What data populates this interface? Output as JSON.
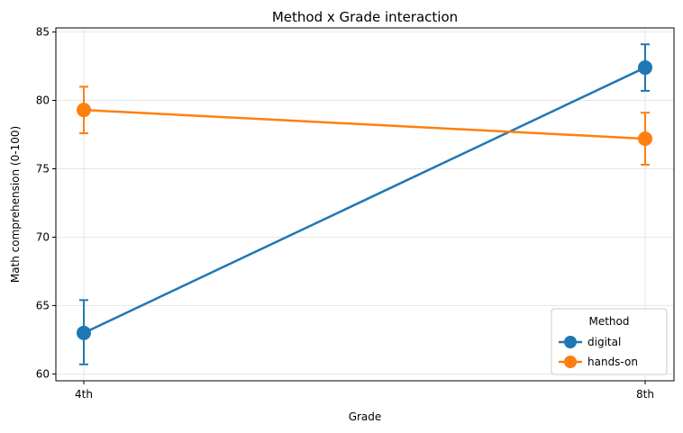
{
  "chart_data": {
    "type": "line",
    "title": "Method x Grade interaction",
    "xlabel": "Grade",
    "ylabel": "Math comprehension (0-100)",
    "categories": [
      "4th",
      "8th"
    ],
    "ylim": [
      59.5,
      85.3
    ],
    "yticks": [
      60,
      65,
      70,
      75,
      80,
      85
    ],
    "grid": true,
    "legend": {
      "title": "Method",
      "placement": "lower-right"
    },
    "series": [
      {
        "name": "digital",
        "color": "#1f77b4",
        "values": [
          63.0,
          82.4
        ],
        "err_low": [
          60.7,
          80.7
        ],
        "err_high": [
          65.4,
          84.1
        ]
      },
      {
        "name": "hands-on",
        "color": "#ff7f0e",
        "values": [
          79.3,
          77.2
        ],
        "err_low": [
          77.6,
          75.3
        ],
        "err_high": [
          81.0,
          79.1
        ]
      }
    ]
  }
}
